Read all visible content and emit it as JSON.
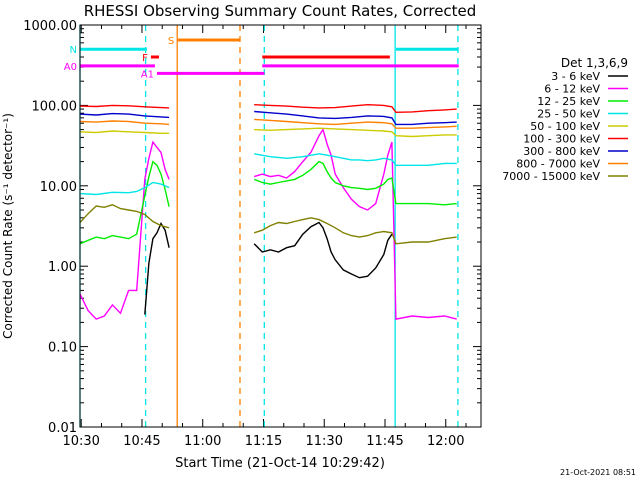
{
  "chart_data": {
    "type": "line",
    "title": "RHESSI Observing Summary Count Rates, Corrected",
    "xlabel": "Start Time (21-Oct-14 10:29:42)",
    "ylabel": "Corrected Count Rate (s⁻¹ detector⁻¹)",
    "x_unit": "minutes after 10:29:42 (time of day shown on x ticks)",
    "xlim": [
      0,
      99
    ],
    "ylim": [
      0.01,
      1000
    ],
    "yscale": "log",
    "x_ticks": [
      {
        "value": 0.3,
        "label": "10:30"
      },
      {
        "value": 15.3,
        "label": "10:45"
      },
      {
        "value": 30.3,
        "label": "11:00"
      },
      {
        "value": 45.3,
        "label": "11:15"
      },
      {
        "value": 60.3,
        "label": "11:30"
      },
      {
        "value": 75.3,
        "label": "11:45"
      },
      {
        "value": 90.3,
        "label": "12:00"
      }
    ],
    "y_ticks": [
      {
        "value": 1000,
        "label": "1000.00"
      },
      {
        "value": 100,
        "label": "100.00"
      },
      {
        "value": 10,
        "label": "10.00"
      },
      {
        "value": 1,
        "label": "1.00"
      },
      {
        "value": 0.1,
        "label": "0.10"
      },
      {
        "value": 0.01,
        "label": "0.01"
      }
    ],
    "legend_title": "Det 1,3,6,9",
    "legend_position": "right",
    "series": [
      {
        "name": "3 - 6 keV",
        "color": "#000000",
        "points": [
          [
            16,
            0.25
          ],
          [
            17,
            1.1
          ],
          [
            18,
            2.2
          ],
          [
            19,
            2.6
          ],
          [
            20,
            3.4
          ],
          [
            21,
            2.8
          ],
          [
            22,
            1.7
          ],
          [
            43,
            1.9
          ],
          [
            45,
            1.5
          ],
          [
            47,
            1.6
          ],
          [
            49,
            1.5
          ],
          [
            51,
            1.7
          ],
          [
            53,
            1.8
          ],
          [
            55,
            2.5
          ],
          [
            57,
            3.1
          ],
          [
            59,
            3.5
          ],
          [
            60,
            3.0
          ],
          [
            61,
            2.2
          ],
          [
            62,
            1.5
          ],
          [
            63,
            1.2
          ],
          [
            65,
            0.9
          ],
          [
            67,
            0.8
          ],
          [
            69,
            0.72
          ],
          [
            71,
            0.75
          ],
          [
            73,
            0.95
          ],
          [
            75,
            1.4
          ],
          [
            76,
            2.1
          ],
          [
            77,
            2.5
          ]
        ]
      },
      {
        "name": "6 - 12 keV",
        "color": "#ff00ff",
        "points": [
          [
            0,
            0.45
          ],
          [
            2,
            0.28
          ],
          [
            4,
            0.22
          ],
          [
            6,
            0.24
          ],
          [
            8,
            0.33
          ],
          [
            10,
            0.26
          ],
          [
            12,
            0.5
          ],
          [
            14,
            0.5
          ],
          [
            16,
            12
          ],
          [
            17,
            22
          ],
          [
            18,
            35
          ],
          [
            19,
            30
          ],
          [
            20,
            26
          ],
          [
            21,
            16
          ],
          [
            22,
            12
          ],
          [
            43,
            13
          ],
          [
            45,
            14
          ],
          [
            47,
            13
          ],
          [
            49,
            13.5
          ],
          [
            51,
            12.5
          ],
          [
            53,
            15
          ],
          [
            55,
            20
          ],
          [
            57,
            26
          ],
          [
            59,
            42
          ],
          [
            60,
            50
          ],
          [
            61,
            33
          ],
          [
            62,
            24
          ],
          [
            63,
            14
          ],
          [
            65,
            9.5
          ],
          [
            67,
            6.8
          ],
          [
            69,
            5.5
          ],
          [
            71,
            5.0
          ],
          [
            73,
            6.0
          ],
          [
            75,
            14
          ],
          [
            76,
            24
          ],
          [
            77,
            35
          ],
          [
            78,
            0.22
          ],
          [
            82,
            0.24
          ],
          [
            86,
            0.23
          ],
          [
            90,
            0.24
          ],
          [
            93,
            0.22
          ]
        ]
      },
      {
        "name": "12 - 25 keV",
        "color": "#00ee00",
        "points": [
          [
            0,
            1.9
          ],
          [
            2,
            2.1
          ],
          [
            4,
            2.3
          ],
          [
            6,
            2.2
          ],
          [
            8,
            2.4
          ],
          [
            10,
            2.3
          ],
          [
            12,
            2.2
          ],
          [
            14,
            2.5
          ],
          [
            16,
            7.5
          ],
          [
            17,
            13
          ],
          [
            18,
            20
          ],
          [
            19,
            18
          ],
          [
            20,
            14
          ],
          [
            21,
            9
          ],
          [
            22,
            5.5
          ],
          [
            43,
            12
          ],
          [
            45,
            11
          ],
          [
            47,
            10.5
          ],
          [
            49,
            11
          ],
          [
            51,
            11.5
          ],
          [
            53,
            12
          ],
          [
            55,
            13.5
          ],
          [
            57,
            16
          ],
          [
            59,
            20
          ],
          [
            60,
            19
          ],
          [
            61,
            15
          ],
          [
            62,
            12.5
          ],
          [
            63,
            11
          ],
          [
            65,
            10
          ],
          [
            67,
            9.5
          ],
          [
            69,
            9.3
          ],
          [
            71,
            9.0
          ],
          [
            73,
            9.3
          ],
          [
            75,
            10.5
          ],
          [
            76,
            12
          ],
          [
            77,
            12.5
          ],
          [
            78,
            6.0
          ],
          [
            82,
            6.0
          ],
          [
            86,
            6.0
          ],
          [
            90,
            5.8
          ],
          [
            93,
            6.0
          ]
        ]
      },
      {
        "name": "25 - 50 keV",
        "color": "#00e5e5",
        "points": [
          [
            0,
            8.0
          ],
          [
            4,
            7.8
          ],
          [
            8,
            8.3
          ],
          [
            12,
            8.2
          ],
          [
            14,
            8.5
          ],
          [
            16,
            9.5
          ],
          [
            18,
            11
          ],
          [
            20,
            10.5
          ],
          [
            22,
            9.5
          ],
          [
            43,
            25
          ],
          [
            47,
            23
          ],
          [
            51,
            22
          ],
          [
            55,
            23
          ],
          [
            59,
            25
          ],
          [
            61,
            24
          ],
          [
            63,
            23
          ],
          [
            65,
            22
          ],
          [
            67,
            21
          ],
          [
            69,
            21
          ],
          [
            71,
            20.5
          ],
          [
            73,
            21
          ],
          [
            75,
            22
          ],
          [
            77,
            21
          ],
          [
            78,
            18
          ],
          [
            82,
            18
          ],
          [
            86,
            18
          ],
          [
            90,
            19
          ],
          [
            93,
            19
          ]
        ]
      },
      {
        "name": "50 - 100 keV",
        "color": "#cccc00",
        "points": [
          [
            0,
            47
          ],
          [
            4,
            46
          ],
          [
            8,
            48
          ],
          [
            12,
            47
          ],
          [
            16,
            46
          ],
          [
            20,
            45
          ],
          [
            22,
            45
          ],
          [
            43,
            50
          ],
          [
            47,
            49
          ],
          [
            51,
            50
          ],
          [
            55,
            51
          ],
          [
            59,
            52
          ],
          [
            63,
            51
          ],
          [
            67,
            50
          ],
          [
            71,
            49
          ],
          [
            75,
            48
          ],
          [
            77,
            47
          ],
          [
            78,
            42
          ],
          [
            82,
            41
          ],
          [
            86,
            42
          ],
          [
            90,
            43
          ],
          [
            93,
            43
          ]
        ]
      },
      {
        "name": "100 - 300 keV",
        "color": "#ff0000",
        "points": [
          [
            0,
            98
          ],
          [
            4,
            97
          ],
          [
            8,
            100
          ],
          [
            12,
            99
          ],
          [
            16,
            96
          ],
          [
            20,
            94
          ],
          [
            22,
            93
          ],
          [
            43,
            102
          ],
          [
            47,
            100
          ],
          [
            51,
            98
          ],
          [
            55,
            95
          ],
          [
            59,
            93
          ],
          [
            63,
            94
          ],
          [
            67,
            98
          ],
          [
            71,
            102
          ],
          [
            75,
            100
          ],
          [
            77,
            96
          ],
          [
            78,
            82
          ],
          [
            82,
            83
          ],
          [
            86,
            86
          ],
          [
            90,
            88
          ],
          [
            93,
            90
          ]
        ]
      },
      {
        "name": "300 - 800 keV",
        "color": "#0000cc",
        "points": [
          [
            0,
            78
          ],
          [
            4,
            76
          ],
          [
            8,
            79
          ],
          [
            12,
            78
          ],
          [
            16,
            74
          ],
          [
            20,
            72
          ],
          [
            22,
            71
          ],
          [
            43,
            84
          ],
          [
            47,
            81
          ],
          [
            51,
            78
          ],
          [
            55,
            74
          ],
          [
            59,
            70
          ],
          [
            63,
            69
          ],
          [
            67,
            71
          ],
          [
            71,
            74
          ],
          [
            75,
            73
          ],
          [
            77,
            70
          ],
          [
            78,
            58
          ],
          [
            82,
            58
          ],
          [
            86,
            60
          ],
          [
            90,
            61
          ],
          [
            93,
            62
          ]
        ]
      },
      {
        "name": "800 - 7000 keV",
        "color": "#ff8000",
        "points": [
          [
            0,
            63
          ],
          [
            4,
            62
          ],
          [
            8,
            64
          ],
          [
            12,
            63
          ],
          [
            16,
            60
          ],
          [
            20,
            59
          ],
          [
            22,
            58
          ],
          [
            43,
            67
          ],
          [
            47,
            65
          ],
          [
            51,
            63
          ],
          [
            55,
            61
          ],
          [
            59,
            59
          ],
          [
            63,
            58
          ],
          [
            67,
            60
          ],
          [
            71,
            62
          ],
          [
            75,
            61
          ],
          [
            77,
            59
          ],
          [
            78,
            52
          ],
          [
            82,
            52
          ],
          [
            86,
            53
          ],
          [
            90,
            54
          ],
          [
            93,
            55
          ]
        ]
      },
      {
        "name": "7000 - 15000 keV",
        "color": "#808000",
        "points": [
          [
            0,
            3.5
          ],
          [
            2,
            4.5
          ],
          [
            4,
            5.6
          ],
          [
            6,
            5.4
          ],
          [
            8,
            5.8
          ],
          [
            10,
            5.2
          ],
          [
            12,
            5.0
          ],
          [
            14,
            4.8
          ],
          [
            16,
            4.4
          ],
          [
            18,
            3.6
          ],
          [
            20,
            3.2
          ],
          [
            22,
            3.0
          ],
          [
            43,
            2.6
          ],
          [
            45,
            2.8
          ],
          [
            47,
            3.2
          ],
          [
            49,
            3.5
          ],
          [
            51,
            3.4
          ],
          [
            53,
            3.6
          ],
          [
            55,
            3.8
          ],
          [
            57,
            4.0
          ],
          [
            59,
            3.8
          ],
          [
            61,
            3.4
          ],
          [
            63,
            3.0
          ],
          [
            65,
            2.6
          ],
          [
            67,
            2.4
          ],
          [
            69,
            2.3
          ],
          [
            71,
            2.4
          ],
          [
            73,
            2.6
          ],
          [
            75,
            2.7
          ],
          [
            77,
            2.6
          ],
          [
            78,
            1.9
          ],
          [
            82,
            2.0
          ],
          [
            86,
            2.0
          ],
          [
            90,
            2.2
          ],
          [
            93,
            2.3
          ]
        ]
      }
    ],
    "flag_bars": [
      {
        "label": "N",
        "color": "#00e5e5",
        "x0": -1,
        "x1": 16.5,
        "y": 500
      },
      {
        "label": "S",
        "color": "#ff8000",
        "x0": 24,
        "x1": 39.5,
        "y": 650
      },
      {
        "label": "F",
        "color": "#ff0000",
        "x0": 17.5,
        "x1": 19.5,
        "y": 400
      },
      {
        "label": "",
        "color": "#ff0000",
        "x0": 45,
        "x1": 76.5,
        "y": 400
      },
      {
        "label": "A0",
        "color": "#ff00ff",
        "x0": -1,
        "x1": 18.5,
        "y": 310
      },
      {
        "label": "A1",
        "color": "#ff00ff",
        "x0": 19,
        "x1": 45.5,
        "y": 250
      },
      {
        "label": "",
        "color": "#ff00ff",
        "x0": 45,
        "x1": 93.5,
        "y": 310
      },
      {
        "label": "",
        "color": "#00e5e5",
        "x0": 78,
        "x1": 93.5,
        "y": 500
      }
    ],
    "vlines": [
      {
        "x": 16.2,
        "color": "#00e5e5",
        "style": "dashed"
      },
      {
        "x": 24.0,
        "color": "#ff8000",
        "style": "solid"
      },
      {
        "x": 39.5,
        "color": "#ff8000",
        "style": "dashed"
      },
      {
        "x": 45.5,
        "color": "#00e5e5",
        "style": "dashed"
      },
      {
        "x": 77.8,
        "color": "#00e5e5",
        "style": "solid"
      },
      {
        "x": 93.3,
        "color": "#00e5e5",
        "style": "dashed"
      },
      {
        "x": 0.0,
        "color": "#00e5e5",
        "style": "solid"
      }
    ]
  },
  "footer": {
    "timestamp": "21-Oct-2021 08:51"
  }
}
